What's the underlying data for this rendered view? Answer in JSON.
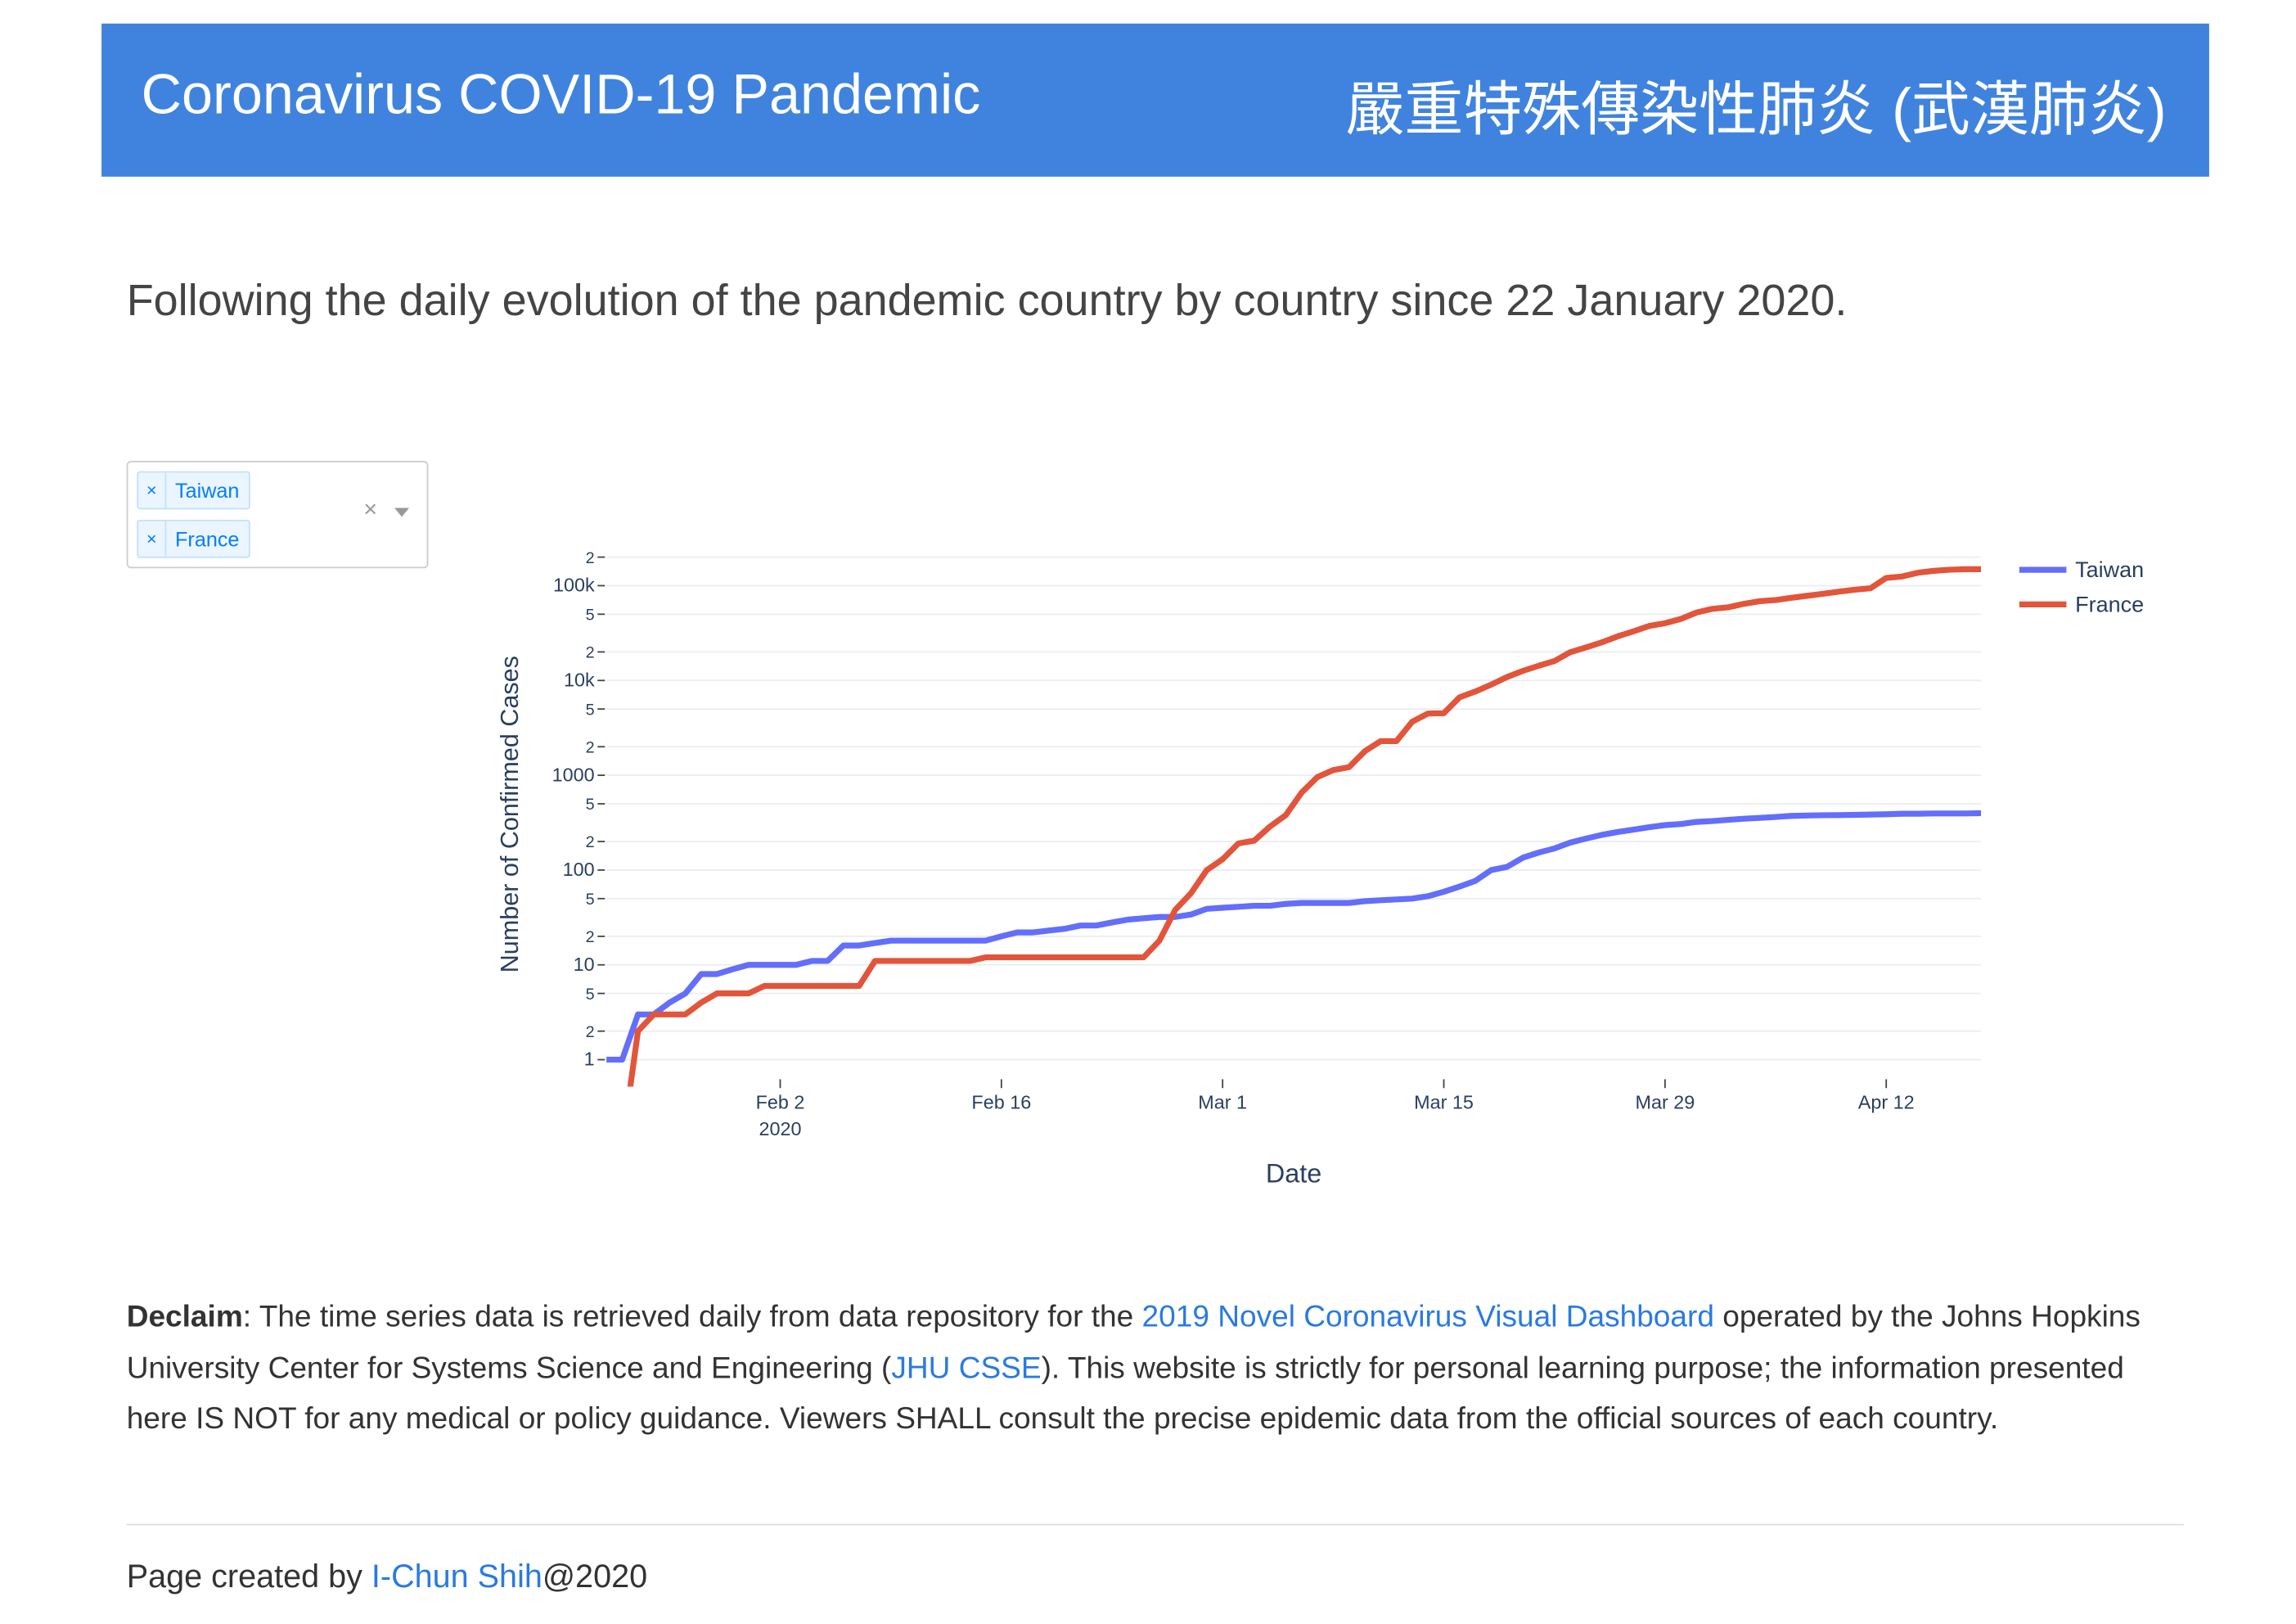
{
  "header": {
    "title": "Coronavirus COVID-19 Pandemic",
    "title_zh": "嚴重特殊傳染性肺炎 (武漢肺炎)"
  },
  "intro": "Following the daily evolution of the pandemic country by country since 22 January 2020.",
  "country_select": {
    "selected": [
      "Taiwan",
      "France"
    ]
  },
  "chart_data": {
    "type": "line",
    "xlabel": "Date",
    "ylabel": "Number of Confirmed Cases",
    "x_year": "2020",
    "log_scale": true,
    "grid": true,
    "legend": "right",
    "x": [
      "2020-01-22",
      "2020-01-23",
      "2020-01-24",
      "2020-01-25",
      "2020-01-26",
      "2020-01-27",
      "2020-01-28",
      "2020-01-29",
      "2020-01-30",
      "2020-01-31",
      "2020-02-01",
      "2020-02-02",
      "2020-02-03",
      "2020-02-04",
      "2020-02-05",
      "2020-02-06",
      "2020-02-07",
      "2020-02-08",
      "2020-02-09",
      "2020-02-10",
      "2020-02-11",
      "2020-02-12",
      "2020-02-13",
      "2020-02-14",
      "2020-02-15",
      "2020-02-16",
      "2020-02-17",
      "2020-02-18",
      "2020-02-19",
      "2020-02-20",
      "2020-02-21",
      "2020-02-22",
      "2020-02-23",
      "2020-02-24",
      "2020-02-25",
      "2020-02-26",
      "2020-02-27",
      "2020-02-28",
      "2020-02-29",
      "2020-03-01",
      "2020-03-02",
      "2020-03-03",
      "2020-03-04",
      "2020-03-05",
      "2020-03-06",
      "2020-03-07",
      "2020-03-08",
      "2020-03-09",
      "2020-03-10",
      "2020-03-11",
      "2020-03-12",
      "2020-03-13",
      "2020-03-14",
      "2020-03-15",
      "2020-03-16",
      "2020-03-17",
      "2020-03-18",
      "2020-03-19",
      "2020-03-20",
      "2020-03-21",
      "2020-03-22",
      "2020-03-23",
      "2020-03-24",
      "2020-03-25",
      "2020-03-26",
      "2020-03-27",
      "2020-03-28",
      "2020-03-29",
      "2020-03-30",
      "2020-03-31",
      "2020-04-01",
      "2020-04-02",
      "2020-04-03",
      "2020-04-04",
      "2020-04-05",
      "2020-04-06",
      "2020-04-07",
      "2020-04-08",
      "2020-04-09",
      "2020-04-10",
      "2020-04-11",
      "2020-04-12",
      "2020-04-13",
      "2020-04-14",
      "2020-04-15",
      "2020-04-16",
      "2020-04-17",
      "2020-04-18"
    ],
    "series": [
      {
        "name": "Taiwan",
        "color": "#636efa",
        "values": [
          1,
          1,
          3,
          3,
          4,
          5,
          8,
          8,
          9,
          10,
          10,
          10,
          10,
          11,
          11,
          16,
          16,
          17,
          18,
          18,
          18,
          18,
          18,
          18,
          18,
          20,
          22,
          22,
          23,
          24,
          26,
          26,
          28,
          30,
          31,
          32,
          32,
          34,
          39,
          40,
          41,
          42,
          42,
          44,
          45,
          45,
          45,
          45,
          47,
          48,
          49,
          50,
          53,
          59,
          67,
          77,
          100,
          108,
          135,
          153,
          169,
          195,
          215,
          235,
          252,
          267,
          283,
          298,
          306,
          322,
          329,
          339,
          348,
          355,
          363,
          373,
          376,
          379,
          380,
          382,
          385,
          388,
          393,
          393,
          395,
          395,
          395,
          398
        ]
      },
      {
        "name": "France",
        "color": "#e2553b",
        "values": [
          0,
          0,
          2,
          3,
          3,
          3,
          4,
          5,
          5,
          5,
          6,
          6,
          6,
          6,
          6,
          6,
          6,
          11,
          11,
          11,
          11,
          11,
          11,
          11,
          12,
          12,
          12,
          12,
          12,
          12,
          12,
          12,
          12,
          12,
          12,
          18,
          38,
          57,
          100,
          130,
          191,
          204,
          288,
          380,
          656,
          957,
          1134,
          1217,
          1792,
          2289,
          2289,
          3672,
          4480,
          4513,
          6650,
          7652,
          9043,
          10871,
          12612,
          14282,
          16018,
          19856,
          22304,
          25233,
          29155,
          32964,
          37575,
          40174,
          44550,
          52128,
          56989,
          59105,
          64338,
          68605,
          70478,
          74390,
          78167,
          82048,
          86334,
          90676,
          93790,
          120633,
          124869,
          136779,
          143303,
          147091,
          149130,
          149149
        ]
      }
    ],
    "xlim": [
      "2020-01-22",
      "2020-04-18"
    ],
    "xticks": [
      {
        "value": "2020-02-02",
        "label": "Feb 2"
      },
      {
        "value": "2020-02-16",
        "label": "Feb 16"
      },
      {
        "value": "2020-03-01",
        "label": "Mar 1"
      },
      {
        "value": "2020-03-15",
        "label": "Mar 15"
      },
      {
        "value": "2020-03-29",
        "label": "Mar 29"
      },
      {
        "value": "2020-04-12",
        "label": "Apr 12"
      }
    ],
    "ylim": [
      0.52,
      270000
    ],
    "yticks": [
      1,
      2,
      5,
      10,
      {
        "value": 20,
        "label": "2"
      },
      {
        "value": 50,
        "label": "5"
      },
      100,
      {
        "value": 200,
        "label": "2"
      },
      {
        "value": 500,
        "label": "5"
      },
      1000,
      {
        "value": 2000,
        "label": "2"
      },
      {
        "value": 5000,
        "label": "5"
      },
      {
        "value": 10000,
        "label": "10k"
      },
      {
        "value": 20000,
        "label": "2"
      },
      {
        "value": 50000,
        "label": "5"
      },
      {
        "value": 100000,
        "label": "100k"
      },
      {
        "value": 200000,
        "label": "2"
      }
    ]
  },
  "declaim": {
    "label": "Declaim",
    "text_1": ": The time series data is retrieved daily from data repository for the ",
    "link_1": "2019 Novel Coronavirus Visual Dashboard",
    "text_2": " operated by the Johns Hopkins University Center for Systems Science and Engineering (",
    "link_2": "JHU CSSE",
    "text_3": "). This website is strictly for personal learning purpose; the information presented here IS NOT for any medical or policy guidance. Viewers SHALL consult the precise epidemic data from the official sources of each country."
  },
  "footer": {
    "text": "Page created by ",
    "link": "I-Chun Shih",
    "suffix": "@2020"
  }
}
